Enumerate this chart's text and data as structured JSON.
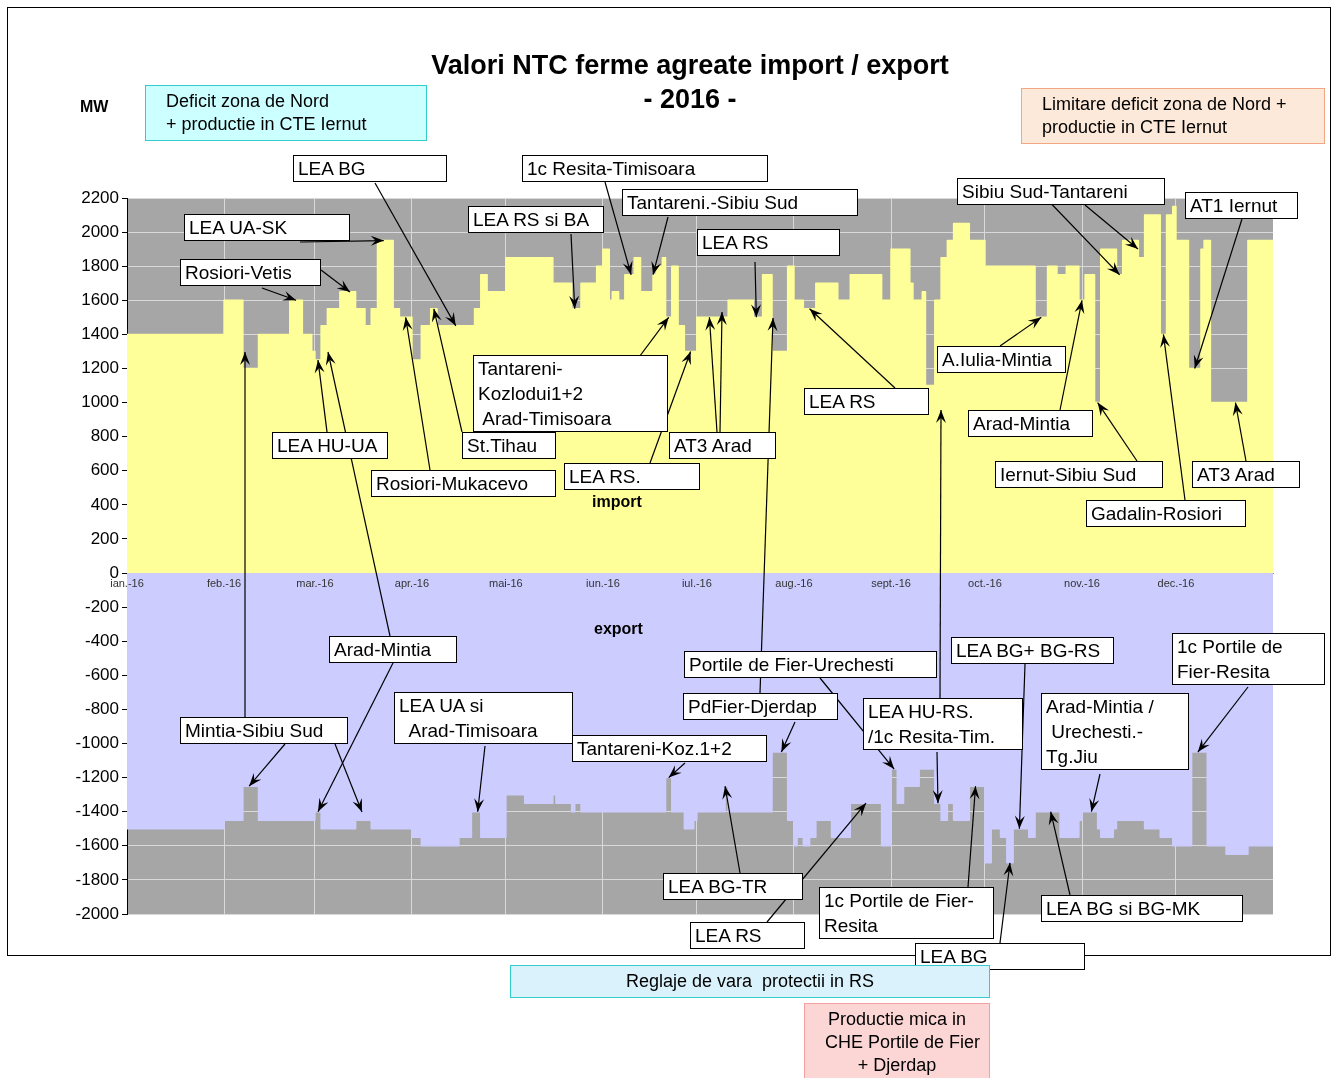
{
  "chart_data": {
    "type": "area",
    "title": "Valori NTC ferme agreate import / export",
    "subtitle": "- 2016 -",
    "ylabel": "MW",
    "xlim": [
      "2016-01-01",
      "2017-01-01"
    ],
    "xticks": [
      {
        "value": "2016-01-01",
        "label": "ian.-16"
      },
      {
        "value": "2016-02-01",
        "label": "feb.-16"
      },
      {
        "value": "2016-03-01",
        "label": "mar.-16"
      },
      {
        "value": "2016-04-01",
        "label": "apr.-16"
      },
      {
        "value": "2016-05-01",
        "label": "mai-16"
      },
      {
        "value": "2016-06-01",
        "label": "iun.-16"
      },
      {
        "value": "2016-07-01",
        "label": "iul.-16"
      },
      {
        "value": "2016-08-01",
        "label": "aug.-16"
      },
      {
        "value": "2016-09-01",
        "label": "sept.-16"
      },
      {
        "value": "2016-10-01",
        "label": "oct.-16"
      },
      {
        "value": "2016-11-01",
        "label": "nov.-16"
      },
      {
        "value": "2016-12-01",
        "label": "dec.-16"
      }
    ],
    "ylim": [
      -2000,
      2200
    ],
    "yticks": [
      -2000,
      -1800,
      -1600,
      -1400,
      -1200,
      -1000,
      -800,
      -600,
      -400,
      -200,
      0,
      200,
      400,
      600,
      800,
      1000,
      1200,
      1400,
      1600,
      1800,
      2000,
      2200
    ],
    "grid": true,
    "series": [
      {
        "name": "import",
        "color": "#ffff99",
        "x": [
          "2016-01-01",
          "2016-02-01",
          "2016-02-01",
          "2016-02-07",
          "2016-02-07",
          "2016-02-12",
          "2016-02-12",
          "2016-02-22",
          "2016-02-22",
          "2016-02-26",
          "2016-02-26",
          "2016-02-29",
          "2016-02-29",
          "2016-03-01",
          "2016-03-01",
          "2016-03-03",
          "2016-03-03",
          "2016-03-05",
          "2016-03-05",
          "2016-03-09",
          "2016-03-09",
          "2016-03-14",
          "2016-03-14",
          "2016-03-17",
          "2016-03-17",
          "2016-03-19",
          "2016-03-19",
          "2016-03-21",
          "2016-03-21",
          "2016-03-26",
          "2016-03-26",
          "2016-03-28",
          "2016-03-28",
          "2016-04-01",
          "2016-04-01",
          "2016-04-04",
          "2016-04-04",
          "2016-04-07",
          "2016-04-07",
          "2016-04-09",
          "2016-04-09",
          "2016-04-21",
          "2016-04-21",
          "2016-04-23",
          "2016-04-23",
          "2016-04-25",
          "2016-04-25",
          "2016-05-01",
          "2016-05-01",
          "2016-05-16",
          "2016-05-16",
          "2016-05-22",
          "2016-05-22",
          "2016-05-25",
          "2016-05-25",
          "2016-05-30",
          "2016-05-30",
          "2016-06-01",
          "2016-06-01",
          "2016-06-03",
          "2016-06-03",
          "2016-06-04",
          "2016-06-04",
          "2016-06-06",
          "2016-06-06",
          "2016-06-08",
          "2016-06-08",
          "2016-06-11",
          "2016-06-11",
          "2016-06-13",
          "2016-06-13",
          "2016-06-17",
          "2016-06-17",
          "2016-06-18",
          "2016-06-18",
          "2016-06-20",
          "2016-06-20",
          "2016-06-21",
          "2016-06-21",
          "2016-06-23",
          "2016-06-23",
          "2016-06-25",
          "2016-06-25",
          "2016-06-27",
          "2016-06-27",
          "2016-07-01",
          "2016-07-01",
          "2016-07-11",
          "2016-07-11",
          "2016-07-19",
          "2016-07-19",
          "2016-07-22",
          "2016-07-22",
          "2016-07-25",
          "2016-07-25",
          "2016-07-30",
          "2016-07-30",
          "2016-08-01",
          "2016-08-01",
          "2016-08-04",
          "2016-08-04",
          "2016-08-08",
          "2016-08-08",
          "2016-08-15",
          "2016-08-15",
          "2016-08-19",
          "2016-08-19",
          "2016-08-29",
          "2016-08-29",
          "2016-09-01",
          "2016-09-01",
          "2016-09-07",
          "2016-09-07",
          "2016-09-08",
          "2016-09-08",
          "2016-09-11",
          "2016-09-11",
          "2016-09-12",
          "2016-09-12",
          "2016-09-15",
          "2016-09-15",
          "2016-09-17",
          "2016-09-17",
          "2016-09-19",
          "2016-09-19",
          "2016-09-21",
          "2016-09-21",
          "2016-09-26",
          "2016-09-26",
          "2016-10-01",
          "2016-10-01",
          "2016-10-17",
          "2016-10-17",
          "2016-10-21",
          "2016-10-21",
          "2016-10-24",
          "2016-10-24",
          "2016-10-27",
          "2016-10-27",
          "2016-10-31",
          "2016-10-31",
          "2016-11-02",
          "2016-11-02",
          "2016-11-05",
          "2016-11-05",
          "2016-11-07",
          "2016-11-07",
          "2016-11-12",
          "2016-11-12",
          "2016-11-14",
          "2016-11-14",
          "2016-11-19",
          "2016-11-19",
          "2016-11-21",
          "2016-11-21",
          "2016-11-26",
          "2016-11-26",
          "2016-11-28",
          "2016-11-28",
          "2016-11-30",
          "2016-11-30",
          "2016-12-01",
          "2016-12-01",
          "2016-12-05",
          "2016-12-05",
          "2016-12-09",
          "2016-12-09",
          "2016-12-10",
          "2016-12-10",
          "2016-12-12",
          "2016-12-12",
          "2016-12-24",
          "2016-12-24",
          "2017-01-01"
        ],
        "values": [
          1400,
          1400,
          1600,
          1600,
          1200,
          1200,
          1400,
          1400,
          1600,
          1600,
          1400,
          1400,
          1300,
          1300,
          1250,
          1250,
          1450,
          1450,
          1550,
          1550,
          1650,
          1650,
          1550,
          1550,
          1450,
          1450,
          1550,
          1550,
          1950,
          1950,
          1550,
          1550,
          1500,
          1500,
          1250,
          1250,
          1450,
          1450,
          1550,
          1550,
          1450,
          1450,
          1550,
          1550,
          1750,
          1750,
          1650,
          1650,
          1850,
          1850,
          1700,
          1700,
          1550,
          1550,
          1700,
          1700,
          1800,
          1800,
          1900,
          1900,
          1600,
          1600,
          1650,
          1650,
          1600,
          1600,
          1750,
          1750,
          1850,
          1850,
          1650,
          1650,
          1750,
          1750,
          1800,
          1800,
          1850,
          1850,
          1500,
          1500,
          1800,
          1800,
          1450,
          1450,
          1300,
          1300,
          1500,
          1500,
          1600,
          1600,
          1500,
          1500,
          1750,
          1750,
          1300,
          1300,
          1800,
          1800,
          1600,
          1600,
          1550,
          1550,
          1700,
          1700,
          1600,
          1600,
          1750,
          1750,
          1600,
          1600,
          1900,
          1900,
          1700,
          1700,
          1600,
          1600,
          1650,
          1650,
          1100,
          1100,
          1600,
          1600,
          1850,
          1850,
          1950,
          1950,
          2050,
          2050,
          1950,
          1950,
          1800,
          1800,
          1500,
          1500,
          1800,
          1800,
          1750,
          1750,
          1800,
          1800,
          1600,
          1600,
          1750,
          1750,
          1000,
          1000,
          1900,
          1900,
          1750,
          1750,
          1950,
          1950,
          1850,
          1850,
          2100,
          2100,
          1400,
          1400,
          2100,
          2100,
          2150,
          2150,
          1950,
          1950,
          1200,
          1200,
          1900,
          1900,
          1950,
          1950,
          1000,
          1000,
          1950,
          1950
        ]
      },
      {
        "name": "export",
        "color": "#ccccff",
        "x": [
          "2016-01-01",
          "2016-02-01",
          "2016-02-01",
          "2016-02-07",
          "2016-02-07",
          "2016-02-12",
          "2016-02-12",
          "2016-03-01",
          "2016-03-01",
          "2016-03-03",
          "2016-03-03",
          "2016-03-14",
          "2016-03-14",
          "2016-03-19",
          "2016-03-19",
          "2016-04-01",
          "2016-04-01",
          "2016-04-04",
          "2016-04-04",
          "2016-04-16",
          "2016-04-16",
          "2016-04-20",
          "2016-04-20",
          "2016-04-23",
          "2016-04-23",
          "2016-05-01",
          "2016-05-01",
          "2016-05-07",
          "2016-05-07",
          "2016-05-16",
          "2016-05-16",
          "2016-05-17",
          "2016-05-17",
          "2016-05-22",
          "2016-05-22",
          "2016-05-23",
          "2016-05-23",
          "2016-05-25",
          "2016-05-25",
          "2016-06-21",
          "2016-06-21",
          "2016-06-23",
          "2016-06-23",
          "2016-06-27",
          "2016-06-27",
          "2016-06-30",
          "2016-06-30",
          "2016-07-01",
          "2016-07-01",
          "2016-07-10",
          "2016-07-10",
          "2016-07-11",
          "2016-07-11",
          "2016-07-25",
          "2016-07-25",
          "2016-07-30",
          "2016-07-30",
          "2016-08-01",
          "2016-08-01",
          "2016-08-02",
          "2016-08-02",
          "2016-08-04",
          "2016-08-04",
          "2016-08-06",
          "2016-08-06",
          "2016-08-08",
          "2016-08-08",
          "2016-08-13",
          "2016-08-13",
          "2016-08-19",
          "2016-08-19",
          "2016-08-29",
          "2016-08-29",
          "2016-09-01",
          "2016-09-01",
          "2016-09-03",
          "2016-09-03",
          "2016-09-05",
          "2016-09-05",
          "2016-09-10",
          "2016-09-10",
          "2016-09-15",
          "2016-09-15",
          "2016-09-17",
          "2016-09-17",
          "2016-09-19",
          "2016-09-19",
          "2016-09-21",
          "2016-09-21",
          "2016-09-26",
          "2016-09-26",
          "2016-10-01",
          "2016-10-01",
          "2016-10-03",
          "2016-10-03",
          "2016-10-06",
          "2016-10-06",
          "2016-10-08",
          "2016-10-08",
          "2016-10-10",
          "2016-10-10",
          "2016-10-15",
          "2016-10-15",
          "2016-10-17",
          "2016-10-17",
          "2016-10-25",
          "2016-10-25",
          "2016-10-31",
          "2016-10-31",
          "2016-11-01",
          "2016-11-01",
          "2016-11-06",
          "2016-11-06",
          "2016-11-07",
          "2016-11-07",
          "2016-11-11",
          "2016-11-11",
          "2016-11-12",
          "2016-11-12",
          "2016-11-21",
          "2016-11-21",
          "2016-11-26",
          "2016-11-26",
          "2016-11-30",
          "2016-11-30",
          "2016-12-06",
          "2016-12-06",
          "2016-12-11",
          "2016-12-11",
          "2016-12-17",
          "2016-12-17",
          "2016-12-24",
          "2016-12-24",
          "2017-01-01"
        ],
        "values": [
          -1500,
          -1500,
          -1450,
          -1450,
          -1250,
          -1250,
          -1450,
          -1450,
          -1400,
          -1400,
          -1500,
          -1500,
          -1450,
          -1450,
          -1500,
          -1500,
          -1550,
          -1550,
          -1600,
          -1600,
          -1550,
          -1550,
          -1400,
          -1400,
          -1550,
          -1550,
          -1300,
          -1300,
          -1350,
          -1350,
          -1300,
          -1300,
          -1350,
          -1350,
          -1400,
          -1400,
          -1350,
          -1350,
          -1400,
          -1400,
          -1200,
          -1200,
          -1400,
          -1400,
          -1500,
          -1500,
          -1450,
          -1450,
          -1400,
          -1400,
          -1250,
          -1250,
          -1400,
          -1400,
          -1050,
          -1050,
          -1450,
          -1450,
          -1600,
          -1600,
          -1550,
          -1550,
          -1600,
          -1600,
          -1550,
          -1550,
          -1450,
          -1450,
          -1550,
          -1550,
          -1350,
          -1350,
          -1600,
          -1600,
          -1150,
          -1150,
          -1350,
          -1350,
          -1250,
          -1250,
          -1150,
          -1150,
          -1350,
          -1350,
          -1450,
          -1450,
          -1350,
          -1350,
          -1450,
          -1450,
          -1250,
          -1250,
          -1700,
          -1700,
          -1500,
          -1500,
          -1550,
          -1550,
          -1700,
          -1700,
          -1500,
          -1500,
          -1550,
          -1550,
          -1400,
          -1400,
          -1550,
          -1550,
          -1450,
          -1450,
          -1400,
          -1400,
          -1500,
          -1500,
          -1550,
          -1550,
          -1500,
          -1500,
          -1450,
          -1450,
          -1500,
          -1500,
          -1550,
          -1550,
          -1600,
          -1600,
          -1050,
          -1050,
          -1600,
          -1600,
          -1650,
          -1650,
          -1600,
          -1600
        ]
      }
    ],
    "annotations": [
      "Deficit zona de Nord\n+ productie in CTE Iernut",
      "Limitare deficit zona de Nord +\nproductie in CTE Iernut",
      {
        "text": "LEA BG",
        "x": "2016-04-15",
        "y": 1450
      },
      {
        "text": "1c Resita-Timisoara",
        "x": "2016-06-10",
        "y": 1750
      },
      {
        "text": "Tantareni.-Sibiu Sud",
        "x": "2016-06-17",
        "y": 1750
      },
      {
        "text": "LEA RS si BA",
        "x": "2016-05-23",
        "y": 1550
      },
      {
        "text": "LEA UA-SK",
        "x": "2016-03-23",
        "y": 1950
      },
      {
        "text": "Rosiori-Vetis",
        "x": "2016-02-24",
        "y": 1600
      },
      {
        "text": "Sibiu Sud-Tantareni",
        "x": "2016-11-13",
        "y": 1750
      },
      {
        "text": "AT1 Iernut",
        "x": "2016-12-07",
        "y": 1200
      },
      {
        "text": "LEA RS",
        "x": "2016-07-20",
        "y": 1500
      },
      {
        "text": "Tantareni-\nKozlodui1+2\n Arad-Timisoara",
        "x": "2016-06-22",
        "y": 1500
      },
      {
        "text": "LEA HU-UA",
        "x": "2016-03-02",
        "y": 1250
      },
      {
        "text": "St.Tihau",
        "x": "2016-04-08",
        "y": 1550
      },
      {
        "text": "Rosiori-Mukacevo",
        "x": "2016-03-30",
        "y": 1500
      },
      {
        "text": "LEA RS.",
        "x": "2016-06-29",
        "y": 1300
      },
      {
        "text": "AT3 Arad",
        "x": "2016-07-05",
        "y": 1500
      },
      {
        "text": "LEA RS",
        "x": "2016-08-06",
        "y": 1550
      },
      {
        "text": "A.Iulia-Mintia",
        "x": "2016-10-19",
        "y": 1500
      },
      {
        "text": "Arad-Mintia",
        "x": "2016-11-01",
        "y": 1600
      },
      {
        "text": "Iernut-Sibiu Sud",
        "x": "2016-11-06",
        "y": 1000
      },
      {
        "text": "AT3 Arad",
        "x": "2016-12-20",
        "y": 1000
      },
      {
        "text": "Gadalin-Rosiori",
        "x": "2016-11-27",
        "y": 1400
      },
      {
        "text": "Arad-Mintia",
        "x": "2016-03-02",
        "y": -1400
      },
      {
        "text": "Mintia-Sibiu Sud",
        "x": "2016-02-09",
        "y": -1250
      },
      {
        "text": "LEA UA si\n  Arad-Timisoara",
        "x": "2016-04-22",
        "y": -1400
      },
      {
        "text": "Portile de Fier-Urechesti",
        "x": "2016-09-02",
        "y": -1150
      },
      {
        "text": "PdFier-Djerdap",
        "x": "2016-07-28",
        "y": -1050
      },
      {
        "text": "Tantareni-Koz.1+2",
        "x": "2016-06-22",
        "y": -1200
      },
      {
        "text": "LEA HU-RS.\n/1c Resita-Tim.",
        "x": "2016-09-16",
        "y": -1350
      },
      {
        "text": "LEA BG+ BG-RS",
        "x": "2016-10-12",
        "y": -1500
      },
      {
        "text": "1c Portile de\nFier-Resita",
        "x": "2016-12-08",
        "y": -1050
      },
      {
        "text": "Arad-Mintia /\n Urechesti.-\nTg.Jiu",
        "x": "2016-11-04",
        "y": -1400
      },
      {
        "text": "LEA BG-TR",
        "x": "2016-07-10",
        "y": -1250
      },
      {
        "text": "LEA RS",
        "x": "2016-08-24",
        "y": -1350
      },
      {
        "text": "1c Portile de Fier-\nResita",
        "x": "2016-09-28",
        "y": -1250
      },
      {
        "text": "LEA BG",
        "x": "2016-10-09",
        "y": -1700
      },
      {
        "text": "LEA BG si BG-MK",
        "x": "2016-10-22",
        "y": -1400
      },
      "Reglaje de vara  protectii in RS",
      "Productie mica in\nCHE Portile de Fier\n+ Djerdap"
    ]
  }
}
